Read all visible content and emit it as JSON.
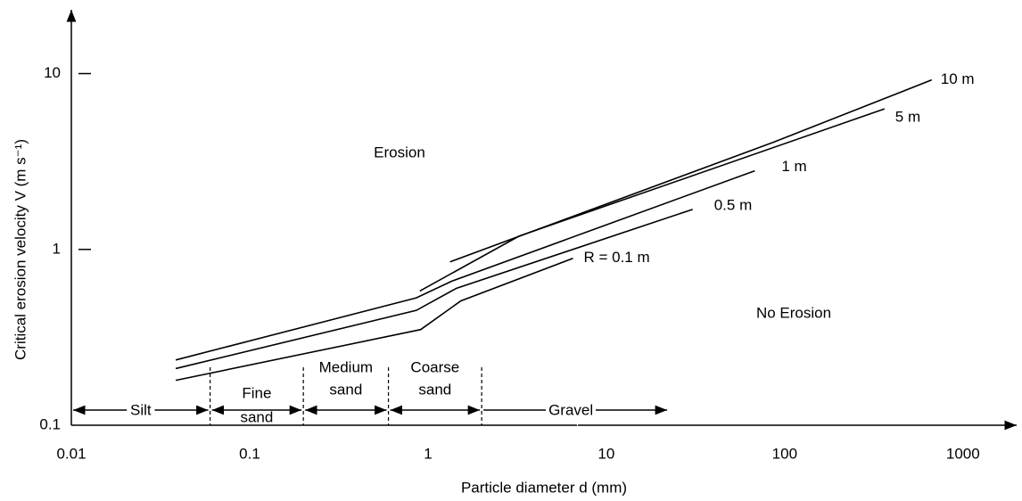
{
  "chart_data": {
    "type": "line",
    "xlabel": "Particle diameter d (mm)",
    "ylabel": "Critical erosion velocity V (m s⁻¹)",
    "xscale": "log",
    "yscale": "log",
    "xlim": [
      0.01,
      2000
    ],
    "ylim": [
      0.1,
      22
    ],
    "xticks": [
      0.01,
      0.1,
      1,
      10,
      100,
      1000
    ],
    "yticks": [
      0.1,
      1,
      10
    ],
    "color": "#000000",
    "series": [
      {
        "name": "R = 0.1 m",
        "x": [
          0.0385,
          0.91,
          1.53,
          6.5
        ],
        "values": [
          0.18,
          0.35,
          0.51,
          0.89
        ]
      },
      {
        "name": "0.5 m",
        "x": [
          0.0385,
          0.86,
          1.44,
          30.5
        ],
        "values": [
          0.21,
          0.45,
          0.6,
          1.69
        ]
      },
      {
        "name": "1 m",
        "x": [
          0.0385,
          0.86,
          1.36,
          68
        ],
        "values": [
          0.235,
          0.53,
          0.66,
          2.8
        ]
      },
      {
        "name": "5 m",
        "x": [
          0.9,
          3.24,
          363
        ],
        "values": [
          0.58,
          1.19,
          6.3
        ]
      },
      {
        "name": "10 m",
        "x": [
          1.33,
          86,
          668
        ],
        "values": [
          0.85,
          4.06,
          9.2
        ]
      }
    ],
    "annotations": [
      "Erosion",
      "No Erosion"
    ],
    "size_classes": [
      {
        "label": [
          "Silt"
        ]
      },
      {
        "label": [
          "Fine",
          "sand"
        ]
      },
      {
        "label": [
          "Medium",
          "sand"
        ]
      },
      {
        "label": [
          "Coarse",
          "sand"
        ]
      },
      {
        "label": [
          "Gravel"
        ]
      }
    ],
    "class_boundaries": [
      0.06,
      0.2,
      0.6,
      2
    ]
  }
}
